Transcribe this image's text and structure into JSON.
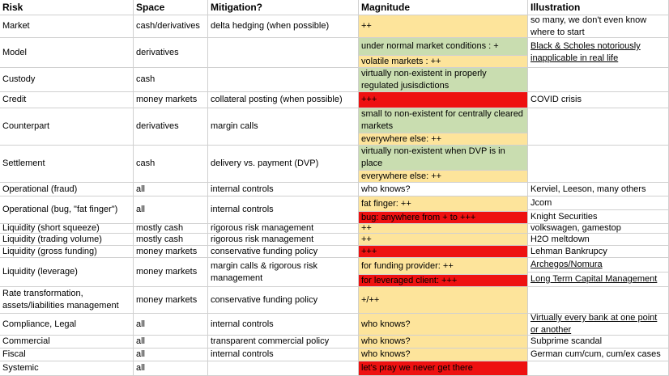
{
  "colors": {
    "green": "#c9ddb0",
    "yellow": "#fde49b",
    "red": "#ee1111"
  },
  "headers": {
    "risk": "Risk",
    "space": "Space",
    "mitigation": "Mitigation?",
    "magnitude": "Magnitude",
    "illustration": "Illustration"
  },
  "rows": [
    {
      "risk": "Market",
      "space": "cash/derivatives",
      "mitigation": "delta hedging (when possible)",
      "magnitude": [
        {
          "text": "++",
          "color": "yellow"
        }
      ],
      "illustration": [
        {
          "text": "so many, we don't even know where to start",
          "link": false
        }
      ]
    },
    {
      "risk": "Model",
      "space": "derivatives",
      "mitigation": "",
      "magnitude": [
        {
          "text": "under normal market conditions : +",
          "color": "green"
        },
        {
          "text": "volatile markets : ++",
          "color": "yellow"
        }
      ],
      "illustration": [
        {
          "text": "Black & Scholes notoriously inapplicable in real life",
          "link": true
        }
      ]
    },
    {
      "risk": "Custody",
      "space": "cash",
      "mitigation": "",
      "magnitude": [
        {
          "text": "virtually non-existent in properly regulated jusisdictions",
          "color": "green"
        }
      ],
      "illustration": []
    },
    {
      "risk": "Credit",
      "space": "money markets",
      "mitigation": "collateral posting (when possible)",
      "magnitude": [
        {
          "text": "+++",
          "color": "red"
        }
      ],
      "illustration": [
        {
          "text": "COVID crisis",
          "link": false
        }
      ]
    },
    {
      "risk": "Counterpart",
      "space": "derivatives",
      "mitigation": "margin calls",
      "magnitude": [
        {
          "text": "small to non-existent for centrally cleared markets",
          "color": "green"
        },
        {
          "text": "everywhere else: ++",
          "color": "yellow"
        }
      ],
      "illustration": []
    },
    {
      "risk": "Settlement",
      "space": "cash",
      "mitigation": "delivery vs. payment (DVP)",
      "magnitude": [
        {
          "text": "virtually non-existent when DVP is in place",
          "color": "green"
        },
        {
          "text": "everywhere else: ++",
          "color": "yellow"
        }
      ],
      "illustration": []
    },
    {
      "risk": "Operational (fraud)",
      "space": "all",
      "mitigation": "internal controls",
      "magnitude": [
        {
          "text": "who knows?",
          "color": "none"
        }
      ],
      "illustration": [
        {
          "text": "Kerviel, Leeson, many others",
          "link": false
        }
      ]
    },
    {
      "risk": "Operational (bug, \"fat finger\")",
      "space": "all",
      "mitigation": "internal controls",
      "magnitude": [
        {
          "text": "fat finger: ++",
          "color": "yellow"
        },
        {
          "text": "bug: anywhere from + to +++",
          "color": "red"
        }
      ],
      "illustration": [
        {
          "text": "Jcom",
          "link": false
        },
        {
          "text": "Knight Securities",
          "link": false
        }
      ]
    },
    {
      "risk": "Liquidity (short squeeze)",
      "space": "mostly cash",
      "mitigation": "rigorous risk management",
      "magnitude": [
        {
          "text": "++",
          "color": "yellow"
        }
      ],
      "illustration": [
        {
          "text": "volkswagen, gamestop",
          "link": false
        }
      ]
    },
    {
      "risk": "Liquidity (trading volume)",
      "space": "mostly cash",
      "mitigation": "rigorous risk management",
      "magnitude": [
        {
          "text": "++",
          "color": "yellow"
        }
      ],
      "illustration": [
        {
          "text": "H2O meltdown",
          "link": false
        }
      ]
    },
    {
      "risk": "Liquidity (gross funding)",
      "space": "money markets",
      "mitigation": "conservative funding policy",
      "magnitude": [
        {
          "text": "+++",
          "color": "red"
        }
      ],
      "illustration": [
        {
          "text": "Lehman Bankrupcy",
          "link": false
        }
      ]
    },
    {
      "risk": "Liquidity (leverage)",
      "space": "money markets",
      "mitigation": "margin calls & rigorous risk management",
      "magnitude": [
        {
          "text": "for funding provider: ++",
          "color": "yellow"
        },
        {
          "text": "for leveraged client: +++",
          "color": "red"
        }
      ],
      "illustration": [
        {
          "text": "Archegos/Nomura",
          "link": true
        },
        {
          "text": "Long Term Capital Management",
          "link": true
        }
      ]
    },
    {
      "risk": "Rate transformation, assets/liabilities management",
      "space": "money markets",
      "mitigation": "conservative funding policy",
      "magnitude": [
        {
          "text": "+/++",
          "color": "yellow"
        }
      ],
      "illustration": []
    },
    {
      "risk": "Compliance, Legal",
      "space": "all",
      "mitigation": "internal controls",
      "magnitude": [
        {
          "text": "who knows?",
          "color": "yellow"
        }
      ],
      "illustration": [
        {
          "text": "Virtually every bank at one point or another",
          "link": true
        }
      ]
    },
    {
      "risk": "Commercial",
      "space": "all",
      "mitigation": "transparent commercial policy",
      "magnitude": [
        {
          "text": "who knows?",
          "color": "yellow"
        }
      ],
      "illustration": [
        {
          "text": "Subprime scandal",
          "link": false
        }
      ]
    },
    {
      "risk": "Fiscal",
      "space": "all",
      "mitigation": "internal controls",
      "magnitude": [
        {
          "text": "who knows?",
          "color": "yellow"
        }
      ],
      "illustration": [
        {
          "text": "German cum/cum, cum/ex cases",
          "link": false
        }
      ]
    },
    {
      "risk": "Systemic",
      "space": "all",
      "mitigation": "",
      "magnitude": [
        {
          "text": "let's pray we never get there",
          "color": "red"
        }
      ],
      "illustration": []
    }
  ]
}
